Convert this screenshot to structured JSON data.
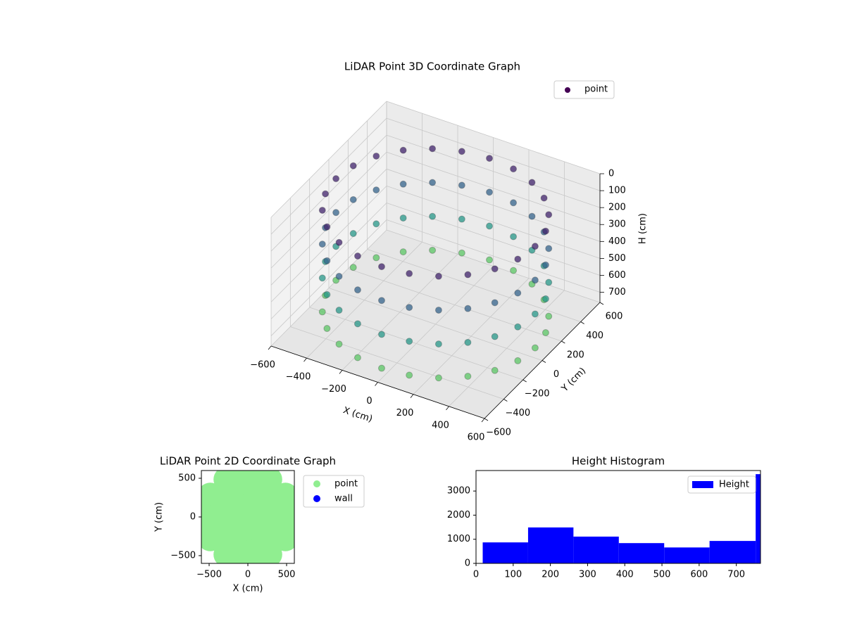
{
  "chart_data": [
    {
      "type": "scatter3d",
      "title": "LiDAR Point 3D Coordinate Graph",
      "xlabel": "X (cm)",
      "ylabel": "Y (cm)",
      "zlabel": "H (cm)",
      "xlim": [
        -600,
        600
      ],
      "ylim": [
        -600,
        600
      ],
      "zlim": [
        760,
        0
      ],
      "xticks": [
        {
          "value": -600,
          "label": "−600"
        },
        {
          "value": -400,
          "label": "−400"
        },
        {
          "value": -200,
          "label": "−200"
        },
        0,
        200,
        400,
        600
      ],
      "yticks": [
        {
          "value": -600,
          "label": "−600"
        },
        {
          "value": -400,
          "label": "−400"
        },
        {
          "value": -200,
          "label": "−200"
        },
        0,
        200,
        400,
        600
      ],
      "zticks": [
        0,
        100,
        200,
        300,
        400,
        500,
        600,
        700
      ],
      "cmap": "viridis",
      "legend": "upper right",
      "grid": true,
      "series": [
        {
          "name": "point",
          "color": "#440154",
          "x": [
            560,
            541,
            485,
            396,
            280,
            145,
            0,
            -145,
            -280,
            -396,
            -485,
            -541,
            -560,
            -541,
            -485,
            -396,
            -280,
            -145,
            0,
            145,
            280,
            396,
            485,
            541,
            560,
            541,
            485,
            396,
            280,
            145,
            0,
            -145,
            -280,
            -396,
            -485,
            -541,
            -560,
            -541,
            -485,
            -396,
            -280,
            -145,
            0,
            145,
            280,
            396,
            485,
            541,
            560,
            541,
            485,
            396,
            280,
            145,
            0,
            -145,
            -280,
            -396,
            -485,
            -541,
            -560,
            -541,
            -485,
            -396,
            -280,
            -145,
            0,
            145,
            280,
            396,
            485,
            541,
            560,
            541,
            485,
            396,
            280,
            145,
            0,
            -145,
            -280,
            -396,
            -485,
            -541,
            -560,
            -541,
            -485,
            -396,
            -280,
            -145,
            0,
            145,
            280,
            396,
            485,
            541
          ],
          "y": [
            0,
            145,
            280,
            396,
            485,
            541,
            560,
            541,
            485,
            396,
            280,
            145,
            0,
            -145,
            -280,
            -396,
            -485,
            -541,
            -560,
            -541,
            -485,
            -396,
            -280,
            -145,
            0,
            145,
            280,
            396,
            485,
            541,
            560,
            541,
            485,
            396,
            280,
            145,
            0,
            -145,
            -280,
            -396,
            -485,
            -541,
            -560,
            -541,
            -485,
            -396,
            -280,
            -145,
            0,
            145,
            280,
            396,
            485,
            541,
            560,
            541,
            485,
            396,
            280,
            145,
            0,
            -145,
            -280,
            -396,
            -485,
            -541,
            -560,
            -541,
            -485,
            -396,
            -280,
            -145,
            0,
            145,
            280,
            396,
            485,
            541,
            560,
            541,
            485,
            396,
            280,
            145,
            0,
            -145,
            -280,
            -396,
            -485,
            -541,
            -560,
            -541,
            -485,
            -396,
            -280,
            -145
          ],
          "z": [
            100,
            100,
            100,
            100,
            100,
            100,
            100,
            100,
            100,
            100,
            100,
            100,
            100,
            100,
            100,
            100,
            100,
            100,
            100,
            100,
            100,
            100,
            100,
            100,
            300,
            300,
            300,
            300,
            300,
            300,
            300,
            300,
            300,
            300,
            300,
            300,
            300,
            300,
            300,
            300,
            300,
            300,
            300,
            300,
            300,
            300,
            300,
            300,
            500,
            500,
            500,
            500,
            500,
            500,
            500,
            500,
            500,
            500,
            500,
            500,
            500,
            500,
            500,
            500,
            500,
            500,
            500,
            500,
            500,
            500,
            500,
            500,
            700,
            700,
            700,
            700,
            700,
            700,
            700,
            700,
            700,
            700,
            700,
            700,
            700,
            700,
            700,
            700,
            700,
            700,
            700,
            700,
            700,
            700,
            700,
            700
          ]
        }
      ]
    },
    {
      "type": "scatter",
      "title": "LiDAR Point 2D Coordinate Graph",
      "xlabel": "X (cm)",
      "ylabel": "Y (cm)",
      "xlim": [
        -600,
        600
      ],
      "ylim": [
        -600,
        600
      ],
      "xticks": [
        {
          "value": -500,
          "label": "−500"
        },
        0,
        500
      ],
      "yticks": [
        {
          "value": -500,
          "label": "−500"
        },
        0,
        500
      ],
      "legend": "outside right",
      "series": [
        {
          "name": "point",
          "color": "#90ee90",
          "x": [
            560,
            485,
            280,
            0,
            -280,
            -485,
            -560,
            -485,
            -280,
            0,
            280,
            485,
            420,
            364,
            210,
            0,
            -210,
            -364,
            -420,
            -364,
            -210,
            0,
            210,
            364,
            280,
            242,
            140,
            0,
            -140,
            -242,
            -280,
            -242,
            -140,
            0,
            140,
            242,
            140,
            121,
            70,
            0,
            -70,
            -121,
            -140,
            -121,
            -70,
            0,
            70,
            121,
            0
          ],
          "y": [
            0,
            280,
            485,
            560,
            485,
            280,
            0,
            -280,
            -485,
            -560,
            -485,
            -280,
            0,
            210,
            364,
            420,
            364,
            210,
            0,
            -210,
            -364,
            -420,
            -364,
            -210,
            0,
            140,
            242,
            280,
            242,
            140,
            0,
            -140,
            -242,
            -280,
            -242,
            -140,
            0,
            70,
            121,
            140,
            121,
            70,
            0,
            -70,
            -121,
            -140,
            -121,
            -70,
            0
          ]
        },
        {
          "name": "wall",
          "color": "#0000ff",
          "x": [],
          "y": []
        }
      ]
    },
    {
      "type": "histogram",
      "title": "Height Histogram",
      "label": "Height",
      "color": "#0000ff",
      "bins": [
        18,
        140,
        262,
        384,
        506,
        628,
        752,
        765
      ],
      "counts": [
        870,
        1490,
        1110,
        840,
        660,
        930,
        3700
      ],
      "xlim": [
        0,
        765
      ],
      "ylim": [
        0,
        3850
      ],
      "xticks": [
        0,
        100,
        200,
        300,
        400,
        500,
        600,
        700
      ],
      "yticks": [
        0,
        1000,
        2000,
        3000
      ],
      "legend": "upper right"
    }
  ]
}
